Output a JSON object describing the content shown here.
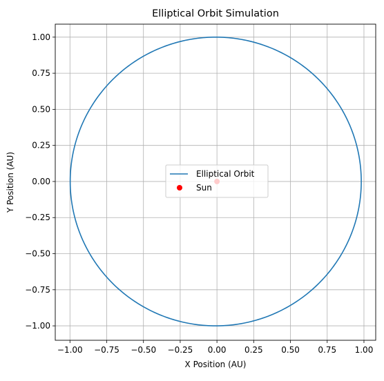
{
  "chart_data": {
    "type": "line",
    "title": "Elliptical Orbit Simulation",
    "xlabel": "X Position (AU)",
    "ylabel": "Y Position (AU)",
    "xlim": [
      -1.1,
      1.08
    ],
    "ylim": [
      -1.1,
      1.09
    ],
    "xticks": [
      -1.0,
      -0.75,
      -0.5,
      -0.25,
      0.0,
      0.25,
      0.5,
      0.75,
      1.0
    ],
    "yticks": [
      -1.0,
      -0.75,
      -0.5,
      -0.25,
      0.0,
      0.25,
      0.5,
      0.75,
      1.0
    ],
    "xtick_labels": [
      "−1.00",
      "−0.75",
      "−0.50",
      "−0.25",
      "0.00",
      "0.25",
      "0.50",
      "0.75",
      "1.00"
    ],
    "ytick_labels": [
      "−1.00",
      "−0.75",
      "−0.50",
      "−0.25",
      "0.00",
      "0.25",
      "0.50",
      "0.75",
      "1.00"
    ],
    "grid": true,
    "legend_position": "center",
    "series": [
      {
        "name": "Elliptical Orbit",
        "kind": "ellipse",
        "center": [
          -0.0083,
          0.0
        ],
        "semi_major": 0.99,
        "semi_minor": 0.99997,
        "color": "#1f77b4"
      },
      {
        "name": "Sun",
        "kind": "scatter",
        "points": [
          [
            0.0,
            0.0
          ]
        ],
        "color": "#ff0000"
      }
    ]
  }
}
